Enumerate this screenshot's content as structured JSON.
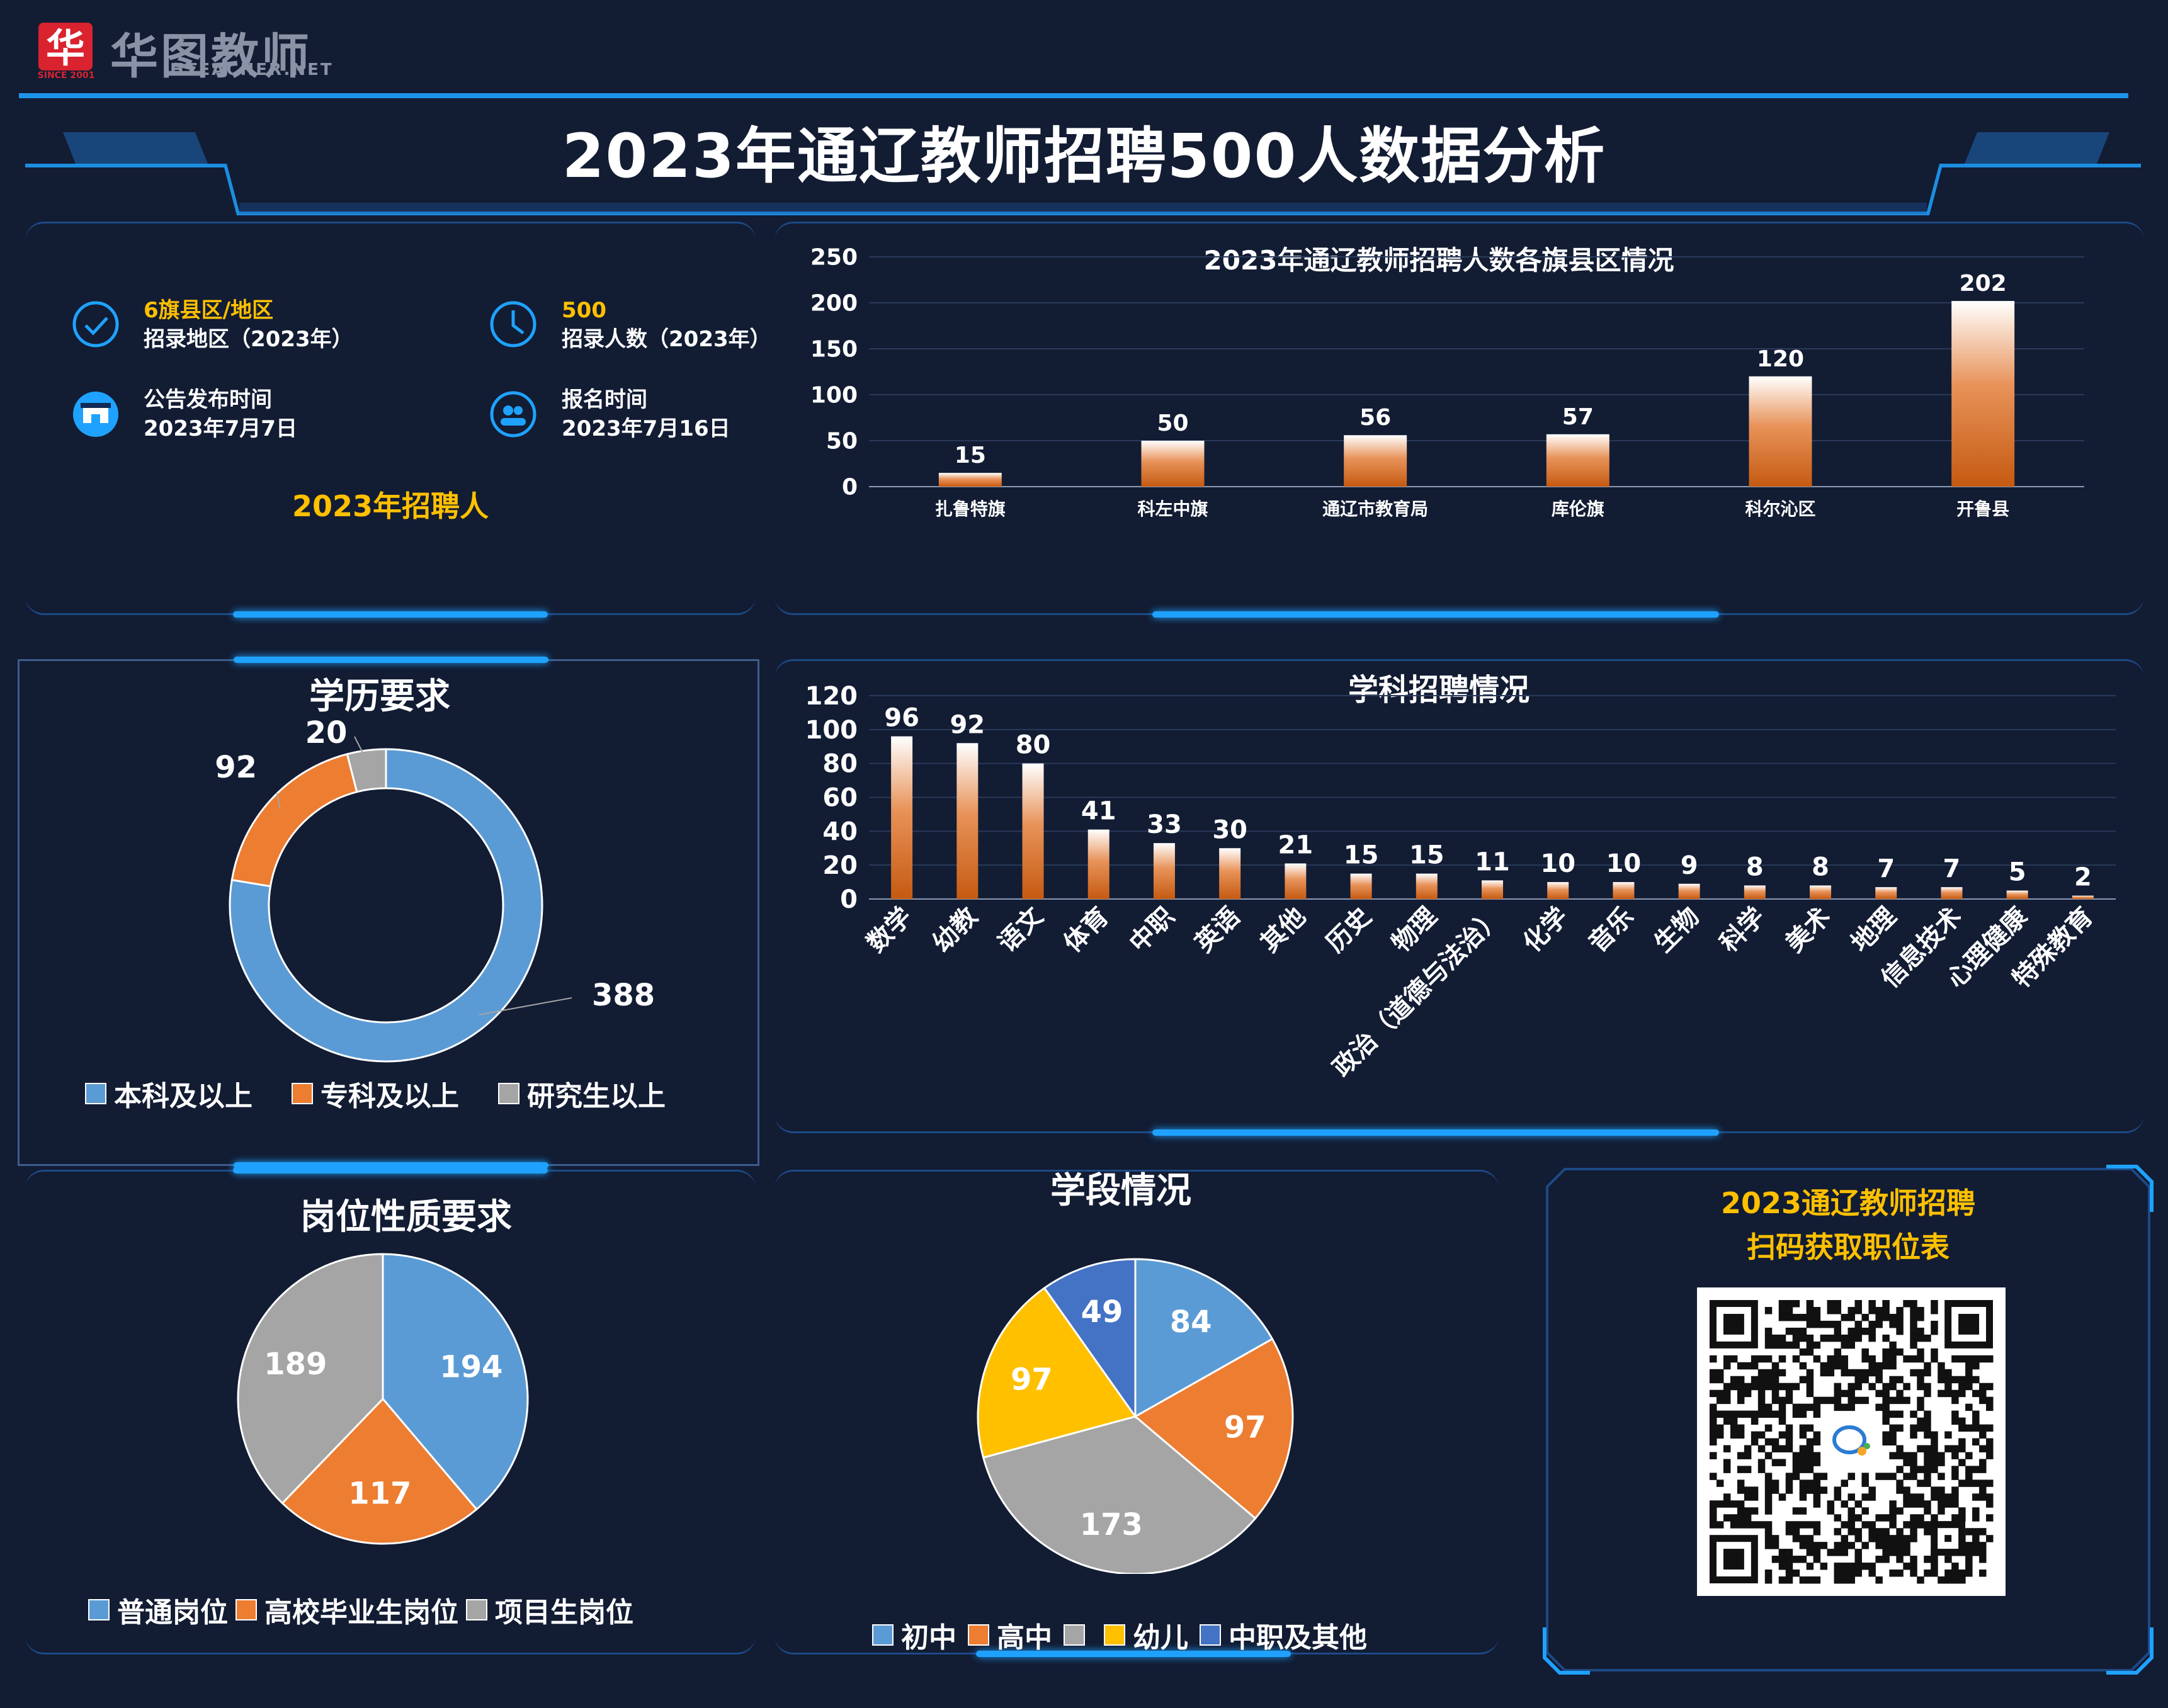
{
  "brand": {
    "name_cn": "华图教师",
    "name_en": "HTEACHER.NET",
    "since": "SINCE 2001",
    "logo_mark": "华"
  },
  "page_title": "2023年通辽教师招聘500人数据分析",
  "info": {
    "region_value": "6旗县区/地区",
    "region_label": "招录地区（2023年）",
    "count_value": "500",
    "count_label": "招录人数（2023年）",
    "announce_label": "公告发布时间",
    "announce_date": "2023年7月7日",
    "signup_label": "报名时间",
    "signup_date": "2023年7月16日",
    "footer": "2023年招聘人"
  },
  "qr": {
    "line1": "2023通辽教师招聘",
    "line2": "扫码获取职位表"
  },
  "colors": {
    "blue": "#5b9bd5",
    "orange": "#ed7d31",
    "gray": "#a5a5a5",
    "yellow": "#ffc000",
    "darkblue": "#4472c4",
    "accent": "#1fa2ff"
  },
  "chart_data": [
    {
      "id": "county",
      "type": "bar",
      "title": "2023年通辽教师招聘人数各旗县区情况",
      "categories": [
        "扎鲁特旗",
        "科左中旗",
        "通辽市教育局",
        "库伦旗",
        "科尔沁区",
        "开鲁县"
      ],
      "values": [
        15,
        50,
        56,
        57,
        120,
        202
      ],
      "ylim": [
        0,
        250
      ],
      "yticks": [
        0,
        50,
        100,
        150,
        200,
        250
      ]
    },
    {
      "id": "subject",
      "type": "bar",
      "title": "学科招聘情况",
      "categories": [
        "数学",
        "幼教",
        "语文",
        "体育",
        "中职",
        "英语",
        "其他",
        "历史",
        "物理",
        "政治（道德与法治）",
        "化学",
        "音乐",
        "生物",
        "科学",
        "美术",
        "地理",
        "信息技术",
        "心理健康",
        "特殊教育"
      ],
      "values": [
        96,
        92,
        80,
        41,
        33,
        30,
        21,
        15,
        15,
        11,
        10,
        10,
        9,
        8,
        8,
        7,
        7,
        5,
        2
      ],
      "ylim": [
        0,
        120
      ],
      "yticks": [
        0,
        20,
        40,
        60,
        80,
        100,
        120
      ]
    },
    {
      "id": "education",
      "type": "pie",
      "donut": true,
      "title": "学历要求",
      "labels": [
        "本科及以上",
        "专科及以上",
        "研究生以上"
      ],
      "values": [
        388,
        92,
        20
      ],
      "colors": [
        "#5b9bd5",
        "#ed7d31",
        "#a5a5a5"
      ]
    },
    {
      "id": "position",
      "type": "pie",
      "title": "岗位性质要求",
      "labels": [
        "普通岗位",
        "高校毕业生岗位",
        "项目生岗位"
      ],
      "values": [
        194,
        117,
        189
      ],
      "colors": [
        "#5b9bd5",
        "#ed7d31",
        "#a5a5a5"
      ]
    },
    {
      "id": "stage",
      "type": "pie",
      "title": "学段情况",
      "labels": [
        "初中",
        "高中",
        "",
        "幼儿",
        "中职及其他"
      ],
      "values": [
        84,
        97,
        173,
        97,
        49
      ],
      "colors": [
        "#5b9bd5",
        "#ed7d31",
        "#a5a5a5",
        "#ffc000",
        "#4472c4"
      ]
    }
  ]
}
